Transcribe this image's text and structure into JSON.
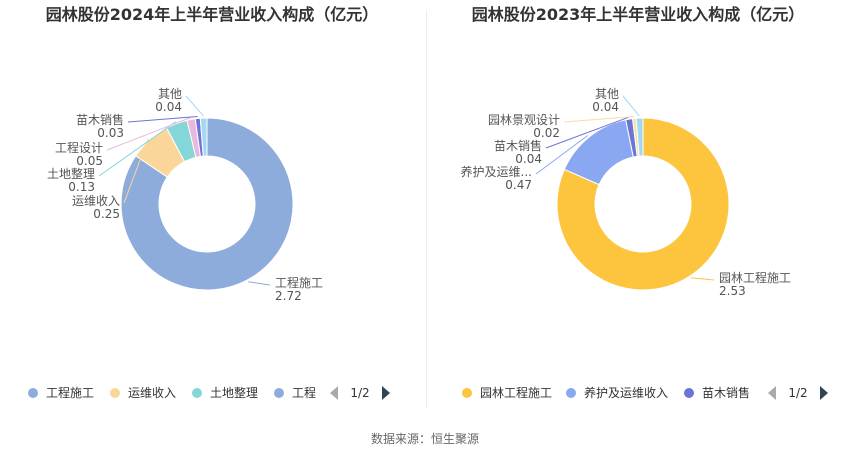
{
  "source": "数据来源：恒生聚源",
  "chart_data": [
    {
      "type": "pie",
      "title": "园林股份2024年上半年营业收入构成（亿元）",
      "slices": [
        {
          "name": "工程施工",
          "value": 2.72,
          "label": "工程施工",
          "value_label": "2.72",
          "color": "#8eacdb"
        },
        {
          "name": "运维收入",
          "value": 0.25,
          "label": "运维收入",
          "value_label": "0.25",
          "color": "#fcd59b"
        },
        {
          "name": "土地整理",
          "value": 0.13,
          "label": "土地整理",
          "value_label": "0.13",
          "color": "#85d6d9"
        },
        {
          "name": "工程设计",
          "value": 0.05,
          "label": "工程设计",
          "value_label": "0.05",
          "color": "#e9b8dd"
        },
        {
          "name": "苗木销售",
          "value": 0.03,
          "label": "苗木销售",
          "value_label": "0.03",
          "color": "#6d74d6"
        },
        {
          "name": "其他",
          "value": 0.04,
          "label": "其他",
          "value_label": "0.04",
          "color": "#a6d7f2"
        }
      ],
      "legend": {
        "placement": "bottom",
        "items": [
          "工程施工",
          "运维收入",
          "土地整理",
          "工程"
        ],
        "page": "1/2"
      }
    },
    {
      "type": "pie",
      "title": "园林股份2023年上半年营业收入构成（亿元）",
      "slices": [
        {
          "name": "园林工程施工",
          "value": 2.53,
          "label": "园林工程施工",
          "value_label": "2.53",
          "color": "#fdc53e"
        },
        {
          "name": "养护及运维收入",
          "value": 0.47,
          "label": "养护及运维...",
          "value_label": "0.47",
          "color": "#8aa8f2"
        },
        {
          "name": "苗木销售",
          "value": 0.04,
          "label": "苗木销售",
          "value_label": "0.04",
          "color": "#6d74d6"
        },
        {
          "name": "园林景观设计",
          "value": 0.02,
          "label": "园林景观设计",
          "value_label": "0.02",
          "color": "#f7dfa3"
        },
        {
          "name": "其他",
          "value": 0.04,
          "label": "其他",
          "value_label": "0.04",
          "color": "#a6d7f2"
        }
      ],
      "legend": {
        "placement": "bottom",
        "items": [
          "园林工程施工",
          "养护及运维收入",
          "苗木销售"
        ],
        "page": "1/2"
      }
    }
  ]
}
